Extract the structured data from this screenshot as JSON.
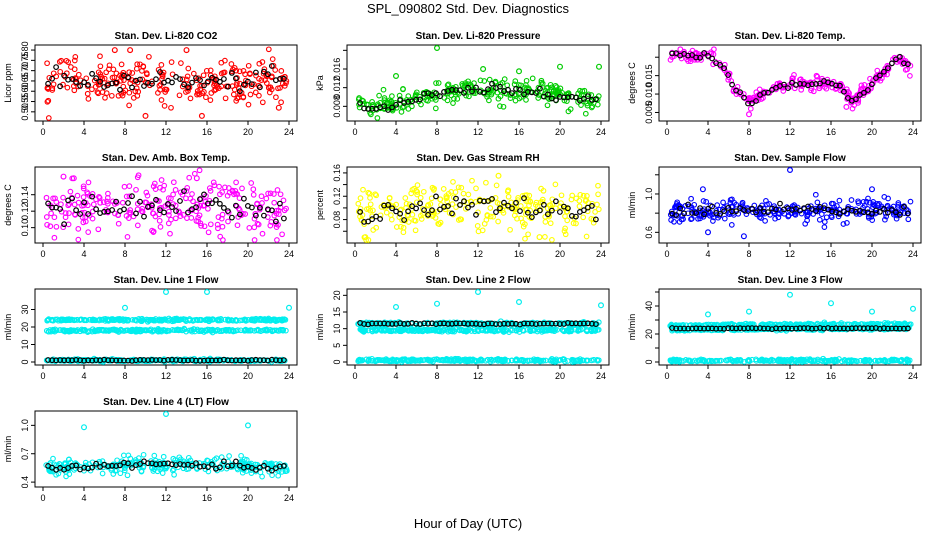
{
  "figure": {
    "title": "SPL_090802  Std. Dev. Diagnostics",
    "xlabel": "Hour of Day (UTC)"
  },
  "chart_data": [
    {
      "type": "scatter",
      "title": "Stan. Dev. Li-820 CO2",
      "ylabel": "Licor ppm",
      "xlim": [
        0,
        24
      ],
      "xticks": [
        0,
        4,
        8,
        12,
        16,
        20,
        24
      ],
      "ylim": [
        0.47,
        0.81
      ],
      "yticks": [
        0.5,
        0.55,
        0.6,
        0.65,
        0.7,
        0.75,
        0.8
      ],
      "ytick_labels": [
        "0.50",
        "0.55",
        "0.60",
        "0.65",
        "0.70",
        "0.75",
        "0.80"
      ],
      "point_color": "#ff0000",
      "series": [
        {
          "values": [
            {
              "x": 0.5,
              "y": 0.63
            },
            {
              "x": 2,
              "y": 0.68
            },
            {
              "x": 4,
              "y": 0.63
            },
            {
              "x": 6,
              "y": 0.64
            },
            {
              "x": 8,
              "y": 0.65
            },
            {
              "x": 10,
              "y": 0.66
            },
            {
              "x": 12,
              "y": 0.65
            },
            {
              "x": 14,
              "y": 0.64
            },
            {
              "x": 16,
              "y": 0.65
            },
            {
              "x": 18,
              "y": 0.64
            },
            {
              "x": 20,
              "y": 0.65
            },
            {
              "x": 22,
              "y": 0.66
            },
            {
              "x": 24,
              "y": 0.66
            }
          ]
        }
      ],
      "noise": 0.05,
      "outliers": [
        {
          "x": 7,
          "y": 0.8
        },
        {
          "x": 8.5,
          "y": 0.8
        },
        {
          "x": 14,
          "y": 0.8
        },
        {
          "x": 10,
          "y": 0.48
        },
        {
          "x": 15.5,
          "y": 0.48
        },
        {
          "x": 23,
          "y": 0.52
        }
      ],
      "black_overlay": true
    },
    {
      "type": "scatter",
      "title": "Stan. Dev. Li-820 Pressure",
      "ylabel": "kPa",
      "xlim": [
        0,
        24
      ],
      "xticks": [
        0,
        4,
        8,
        12,
        16,
        20,
        24
      ],
      "ylim": [
        0.0055,
        0.0205
      ],
      "yticks": [
        0.008,
        0.012,
        0.016,
        0.02
      ],
      "ytick_labels": [
        "0.008",
        "0.012",
        "0.016",
        ""
      ],
      "point_color": "#00cc00",
      "series": [
        {
          "values": [
            {
              "x": 0,
              "y": 0.0085
            },
            {
              "x": 2,
              "y": 0.0075
            },
            {
              "x": 4,
              "y": 0.0085
            },
            {
              "x": 6,
              "y": 0.0095
            },
            {
              "x": 8,
              "y": 0.0105
            },
            {
              "x": 10,
              "y": 0.011
            },
            {
              "x": 12,
              "y": 0.0115
            },
            {
              "x": 14,
              "y": 0.0115
            },
            {
              "x": 16,
              "y": 0.011
            },
            {
              "x": 18,
              "y": 0.0115
            },
            {
              "x": 20,
              "y": 0.0105
            },
            {
              "x": 22,
              "y": 0.0095
            },
            {
              "x": 24,
              "y": 0.0095
            }
          ]
        }
      ],
      "noise": 0.0012,
      "outliers": [
        {
          "x": 4,
          "y": 0.0145
        },
        {
          "x": 8,
          "y": 0.0205
        },
        {
          "x": 12.5,
          "y": 0.016
        },
        {
          "x": 16,
          "y": 0.0155
        },
        {
          "x": 20,
          "y": 0.0165
        },
        {
          "x": 23.8,
          "y": 0.0165
        }
      ],
      "black_overlay": true
    },
    {
      "type": "scatter",
      "title": "Stan. Dev. Li-820 Temp.",
      "ylabel": "degrees C",
      "xlim": [
        0,
        24
      ],
      "xticks": [
        0,
        4,
        8,
        12,
        16,
        20,
        24
      ],
      "ylim": [
        0.0035,
        0.0225
      ],
      "yticks": [
        0.005,
        0.01,
        0.015,
        0.02
      ],
      "ytick_labels": [
        "0.005",
        "0.010",
        "0.015",
        ""
      ],
      "point_color": "#ff00ff",
      "series": [
        {
          "values": [
            {
              "x": 0,
              "y": 0.021
            },
            {
              "x": 2,
              "y": 0.0205
            },
            {
              "x": 4,
              "y": 0.0205
            },
            {
              "x": 5.5,
              "y": 0.0175
            },
            {
              "x": 6.5,
              "y": 0.012
            },
            {
              "x": 8,
              "y": 0.0075
            },
            {
              "x": 9.5,
              "y": 0.01
            },
            {
              "x": 11,
              "y": 0.0125
            },
            {
              "x": 12.5,
              "y": 0.013
            },
            {
              "x": 14,
              "y": 0.0125
            },
            {
              "x": 15.5,
              "y": 0.013
            },
            {
              "x": 17,
              "y": 0.012
            },
            {
              "x": 18,
              "y": 0.008
            },
            {
              "x": 19.5,
              "y": 0.0115
            },
            {
              "x": 21,
              "y": 0.0155
            },
            {
              "x": 22.5,
              "y": 0.02
            },
            {
              "x": 24,
              "y": 0.016
            }
          ]
        }
      ],
      "noise": 0.0009,
      "outliers": [
        {
          "x": 8,
          "y": 0.0045
        },
        {
          "x": 17.5,
          "y": 0.0065
        }
      ],
      "black_overlay": true
    },
    {
      "type": "scatter",
      "title": "Stan. Dev. Amb. Box Temp.",
      "ylabel": "degrees C",
      "xlim": [
        0,
        24
      ],
      "xticks": [
        0,
        4,
        8,
        12,
        16,
        20,
        24
      ],
      "ylim": [
        0.085,
        0.17
      ],
      "yticks": [
        0.1,
        0.12,
        0.14
      ],
      "ytick_labels": [
        "0.10",
        "0.12",
        "0.14"
      ],
      "point_color": "#ff00ff",
      "series": [
        {
          "values": [
            {
              "x": 0,
              "y": 0.12
            },
            {
              "x": 4,
              "y": 0.122
            },
            {
              "x": 8,
              "y": 0.123
            },
            {
              "x": 12,
              "y": 0.125
            },
            {
              "x": 16,
              "y": 0.127
            },
            {
              "x": 20,
              "y": 0.122
            },
            {
              "x": 24,
              "y": 0.12
            }
          ]
        }
      ],
      "noise": 0.018,
      "outliers": [
        {
          "x": 2,
          "y": 0.162
        },
        {
          "x": 3,
          "y": 0.16
        },
        {
          "x": 15,
          "y": 0.16
        }
      ],
      "black_overlay": true
    },
    {
      "type": "scatter",
      "title": "Stan. Dev. Gas Stream RH",
      "ylabel": "percent",
      "xlim": [
        0,
        24
      ],
      "xticks": [
        0,
        4,
        8,
        12,
        16,
        20,
        24
      ],
      "ylim": [
        0.045,
        0.165
      ],
      "yticks": [
        0.06,
        0.08,
        0.1,
        0.12,
        0.14,
        0.16
      ],
      "ytick_labels": [
        "",
        "0.08",
        "",
        "0.12",
        "",
        "0.16"
      ],
      "point_color": "#ffff00",
      "series": [
        {
          "values": [
            {
              "x": 0,
              "y": 0.095
            },
            {
              "x": 4,
              "y": 0.098
            },
            {
              "x": 8,
              "y": 0.1
            },
            {
              "x": 12,
              "y": 0.102
            },
            {
              "x": 16,
              "y": 0.1
            },
            {
              "x": 20,
              "y": 0.097
            },
            {
              "x": 24,
              "y": 0.095
            }
          ]
        }
      ],
      "noise": 0.02,
      "outliers": [
        {
          "x": 14,
          "y": 0.155
        },
        {
          "x": 18,
          "y": 0.05
        },
        {
          "x": 1,
          "y": 0.05
        }
      ],
      "black_overlay": true
    },
    {
      "type": "scatter",
      "title": "Stan. Dev. Sample Flow",
      "ylabel": "ml/min",
      "xlim": [
        0,
        24
      ],
      "xticks": [
        0,
        4,
        8,
        12,
        16,
        20,
        24
      ],
      "ylim": [
        0.52,
        1.25
      ],
      "yticks": [
        0.6,
        0.8,
        1.0,
        1.2
      ],
      "ytick_labels": [
        "0.6",
        "",
        "1.0",
        ""
      ],
      "point_color": "#0000ff",
      "series": [
        {
          "values": [
            {
              "x": 0,
              "y": 0.8
            },
            {
              "x": 4,
              "y": 0.82
            },
            {
              "x": 8,
              "y": 0.83
            },
            {
              "x": 12,
              "y": 0.83
            },
            {
              "x": 16,
              "y": 0.83
            },
            {
              "x": 20,
              "y": 0.82
            },
            {
              "x": 24,
              "y": 0.8
            }
          ]
        }
      ],
      "noise": 0.06,
      "outliers": [
        {
          "x": 12,
          "y": 1.25
        },
        {
          "x": 20,
          "y": 1.05
        },
        {
          "x": 3.5,
          "y": 1.05
        },
        {
          "x": 7.5,
          "y": 0.56
        },
        {
          "x": 4,
          "y": 0.6
        }
      ],
      "black_overlay": true
    },
    {
      "type": "scatter",
      "title": "Stan. Dev. Line 1 Flow",
      "ylabel": "ml/min",
      "xlim": [
        0,
        24
      ],
      "xticks": [
        0,
        4,
        8,
        12,
        16,
        20,
        24
      ],
      "ylim": [
        0,
        40
      ],
      "yticks": [
        0,
        10,
        20,
        30
      ],
      "ytick_labels": [
        "0",
        "10",
        "20",
        "30"
      ],
      "point_color": "#00eeee",
      "series": [
        {
          "values": [
            {
              "x": 0,
              "y": 24
            },
            {
              "x": 24,
              "y": 24
            }
          ]
        },
        {
          "values": [
            {
              "x": 0,
              "y": 18
            },
            {
              "x": 24,
              "y": 18
            }
          ]
        },
        {
          "values": [
            {
              "x": 0,
              "y": 1
            },
            {
              "x": 24,
              "y": 1
            }
          ]
        }
      ],
      "noise": 1.0,
      "outliers": [
        {
          "x": 12,
          "y": 41
        },
        {
          "x": 16,
          "y": 40
        },
        {
          "x": 8,
          "y": 31
        },
        {
          "x": 24,
          "y": 31
        }
      ],
      "black_overlay": true,
      "black_level": 1
    },
    {
      "type": "scatter",
      "title": "Stan. Dev. Line 2 Flow",
      "ylabel": "ml/min",
      "xlim": [
        0,
        24
      ],
      "xticks": [
        0,
        4,
        8,
        12,
        16,
        20,
        24
      ],
      "ylim": [
        0,
        21
      ],
      "yticks": [
        0,
        5,
        10,
        15,
        20
      ],
      "ytick_labels": [
        "0",
        "5",
        "10",
        "15",
        "20"
      ],
      "point_color": "#00eeee",
      "series": [
        {
          "values": [
            {
              "x": 0,
              "y": 11.5
            },
            {
              "x": 24,
              "y": 11.5
            }
          ]
        },
        {
          "values": [
            {
              "x": 0,
              "y": 9.5
            },
            {
              "x": 24,
              "y": 9.5
            }
          ]
        },
        {
          "values": [
            {
              "x": 0,
              "y": 0.5
            },
            {
              "x": 24,
              "y": 0.5
            }
          ]
        }
      ],
      "noise": 0.6,
      "outliers": [
        {
          "x": 12,
          "y": 21
        },
        {
          "x": 16,
          "y": 18
        },
        {
          "x": 8,
          "y": 17.5
        },
        {
          "x": 4,
          "y": 16.5
        },
        {
          "x": 24,
          "y": 17
        }
      ],
      "black_overlay": true,
      "black_level": 11.5
    },
    {
      "type": "scatter",
      "title": "Stan. Dev. Line 3 Flow",
      "ylabel": "ml/min",
      "xlim": [
        0,
        24
      ],
      "xticks": [
        0,
        4,
        8,
        12,
        16,
        20,
        24
      ],
      "ylim": [
        0,
        50
      ],
      "yticks": [
        0,
        10,
        20,
        30,
        40,
        50
      ],
      "ytick_labels": [
        "0",
        "",
        "20",
        "",
        "40",
        ""
      ],
      "point_color": "#00eeee",
      "series": [
        {
          "values": [
            {
              "x": 0,
              "y": 26
            },
            {
              "x": 24,
              "y": 27
            }
          ]
        },
        {
          "values": [
            {
              "x": 0,
              "y": 23
            },
            {
              "x": 24,
              "y": 24
            }
          ]
        },
        {
          "values": [
            {
              "x": 0,
              "y": 1
            },
            {
              "x": 24,
              "y": 1
            }
          ]
        }
      ],
      "noise": 1.3,
      "outliers": [
        {
          "x": 12,
          "y": 48
        },
        {
          "x": 16,
          "y": 42
        },
        {
          "x": 20,
          "y": 36
        },
        {
          "x": 8,
          "y": 36
        },
        {
          "x": 4,
          "y": 34
        },
        {
          "x": 24,
          "y": 38
        }
      ],
      "black_overlay": true,
      "black_level": 24
    },
    {
      "type": "scatter",
      "title": "Stan. Dev. Line 4 (LT) Flow",
      "ylabel": "ml/min",
      "xlim": [
        0,
        24
      ],
      "xticks": [
        0,
        4,
        8,
        12,
        16,
        20,
        24
      ],
      "ylim": [
        0.38,
        1.12
      ],
      "yticks": [
        0.4,
        0.7,
        1.0
      ],
      "ytick_labels": [
        "0.4",
        "0.7",
        "1.0"
      ],
      "point_color": "#00eeee",
      "series": [
        {
          "values": [
            {
              "x": 0,
              "y": 0.55
            },
            {
              "x": 8,
              "y": 0.58
            },
            {
              "x": 12,
              "y": 0.59
            },
            {
              "x": 16,
              "y": 0.58
            },
            {
              "x": 24,
              "y": 0.55
            }
          ]
        }
      ],
      "noise": 0.04,
      "outliers": [
        {
          "x": 12,
          "y": 1.12
        },
        {
          "x": 4,
          "y": 0.98
        },
        {
          "x": 20,
          "y": 1.0
        }
      ],
      "black_overlay": true
    }
  ]
}
